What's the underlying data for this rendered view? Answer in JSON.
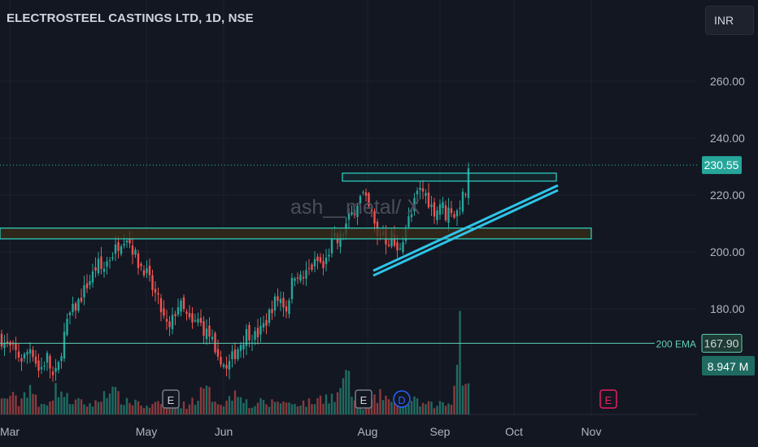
{
  "header": {
    "title": "ELECTROSTEEL CASTINGS LTD, 1D, NSE",
    "currency_button": "INR"
  },
  "watermark": "ash__metal/ X",
  "colors": {
    "background": "#131722",
    "up": "#26a69a",
    "down": "#ef5350",
    "trendline": "#2ec4e8",
    "level": "#2fd6c5",
    "zone_fill": "#3a2e18",
    "ema": "#5fd0b5",
    "grid": "#1e222d"
  },
  "price_labels": {
    "last_price": "230.55",
    "ema_price": "167.90",
    "volume": "8.947 M",
    "ema_label": "200 EMA"
  },
  "events": [
    {
      "label": "E",
      "type": "earnings",
      "month": "May"
    },
    {
      "label": "E",
      "type": "earnings",
      "month": "Aug"
    },
    {
      "label": "D",
      "type": "dividend",
      "month": "Aug"
    },
    {
      "label": "E",
      "type": "earnings-upcoming",
      "month": "Nov"
    }
  ],
  "chart_data": {
    "type": "candlestick",
    "title": "ELECTROSTEEL CASTINGS LTD, 1D, NSE",
    "x_tick_labels": [
      "Mar",
      "May",
      "Jun",
      "Aug",
      "Sep",
      "Oct",
      "Nov"
    ],
    "y_tick_labels": [
      "260.00",
      "240.00",
      "220.00",
      "200.00",
      "180.00"
    ],
    "ylim": [
      144,
      293
    ],
    "currency": "INR",
    "grid": false,
    "close_path": [
      [
        0,
        170
      ],
      [
        8,
        167
      ],
      [
        18,
        165
      ],
      [
        28,
        162
      ],
      [
        38,
        167
      ],
      [
        48,
        158
      ],
      [
        58,
        163
      ],
      [
        66,
        155
      ],
      [
        72,
        160
      ],
      [
        78,
        170
      ],
      [
        86,
        178
      ],
      [
        96,
        182
      ],
      [
        106,
        188
      ],
      [
        114,
        192
      ],
      [
        120,
        196
      ],
      [
        126,
        193
      ],
      [
        132,
        197
      ],
      [
        140,
        200
      ],
      [
        148,
        204
      ],
      [
        155,
        206
      ],
      [
        162,
        202
      ],
      [
        170,
        196
      ],
      [
        178,
        194
      ],
      [
        186,
        188
      ],
      [
        194,
        183
      ],
      [
        202,
        176
      ],
      [
        208,
        172
      ],
      [
        214,
        178
      ],
      [
        220,
        182
      ],
      [
        228,
        178
      ],
      [
        236,
        174
      ],
      [
        244,
        176
      ],
      [
        252,
        172
      ],
      [
        260,
        170
      ],
      [
        266,
        160
      ],
      [
        272,
        163
      ],
      [
        278,
        158
      ],
      [
        284,
        162
      ],
      [
        290,
        165
      ],
      [
        296,
        168
      ],
      [
        304,
        172
      ],
      [
        312,
        170
      ],
      [
        320,
        172
      ],
      [
        328,
        176
      ],
      [
        336,
        182
      ],
      [
        344,
        184
      ],
      [
        352,
        180
      ],
      [
        358,
        188
      ],
      [
        364,
        194
      ],
      [
        370,
        190
      ],
      [
        376,
        192
      ],
      [
        384,
        195
      ],
      [
        392,
        197
      ],
      [
        398,
        194
      ],
      [
        404,
        200
      ],
      [
        410,
        205
      ],
      [
        416,
        203
      ],
      [
        422,
        207
      ],
      [
        428,
        211
      ],
      [
        434,
        214
      ],
      [
        440,
        218
      ],
      [
        446,
        220
      ],
      [
        452,
        216
      ],
      [
        458,
        212
      ],
      [
        464,
        205
      ],
      [
        470,
        208
      ],
      [
        476,
        203
      ],
      [
        482,
        206
      ],
      [
        488,
        199
      ],
      [
        494,
        204
      ],
      [
        500,
        210
      ],
      [
        506,
        213
      ],
      [
        512,
        220
      ],
      [
        518,
        222
      ],
      [
        524,
        220
      ],
      [
        530,
        216
      ],
      [
        536,
        214
      ],
      [
        542,
        218
      ],
      [
        548,
        213
      ],
      [
        554,
        216
      ],
      [
        560,
        212
      ],
      [
        566,
        218
      ],
      [
        572,
        220
      ],
      [
        578,
        230.55
      ]
    ],
    "volume_profile_m": [
      [
        0,
        2.2
      ],
      [
        12,
        3.5
      ],
      [
        24,
        2.0
      ],
      [
        36,
        5.6
      ],
      [
        48,
        1.2
      ],
      [
        60,
        2.8
      ],
      [
        72,
        4.8
      ],
      [
        84,
        2.6
      ],
      [
        96,
        2.2
      ],
      [
        108,
        1.8
      ],
      [
        120,
        2.0
      ],
      [
        132,
        5.0
      ],
      [
        144,
        3.3
      ],
      [
        156,
        2.1
      ],
      [
        168,
        2.5
      ],
      [
        180,
        1.2
      ],
      [
        192,
        1.8
      ],
      [
        204,
        1.4
      ],
      [
        216,
        2.2
      ],
      [
        228,
        1.6
      ],
      [
        240,
        2.8
      ],
      [
        252,
        4.3
      ],
      [
        262,
        3.2
      ],
      [
        272,
        2.0
      ],
      [
        282,
        2.7
      ],
      [
        294,
        5.2
      ],
      [
        306,
        1.2
      ],
      [
        318,
        2.2
      ],
      [
        330,
        1.8
      ],
      [
        342,
        2.6
      ],
      [
        354,
        1.9
      ],
      [
        366,
        2.2
      ],
      [
        378,
        2.0
      ],
      [
        390,
        2.5
      ],
      [
        402,
        3.5
      ],
      [
        414,
        2.7
      ],
      [
        424,
        8.0
      ],
      [
        436,
        2.2
      ],
      [
        448,
        1.4
      ],
      [
        460,
        2.5
      ],
      [
        472,
        3.7
      ],
      [
        484,
        1.6
      ],
      [
        496,
        2.0
      ],
      [
        508,
        2.4
      ],
      [
        520,
        1.8
      ],
      [
        532,
        1.7
      ],
      [
        544,
        2.0
      ],
      [
        556,
        1.8
      ],
      [
        564,
        17.7
      ],
      [
        570,
        3.5
      ],
      [
        577,
        8.947
      ]
    ],
    "overlays": {
      "resistance_box": {
        "from_price": 224.9,
        "to_price": 227.7
      },
      "support_zone": {
        "from_price": 204.6,
        "to_price": 208.4
      },
      "ema_200": {
        "name": "200 EMA",
        "value": 167.9
      },
      "trendline_lower": {
        "start_price": 191.7,
        "end_price": 221.7
      },
      "trendline_upper": {
        "start_price": 193.4,
        "end_price": 223.4
      }
    }
  }
}
